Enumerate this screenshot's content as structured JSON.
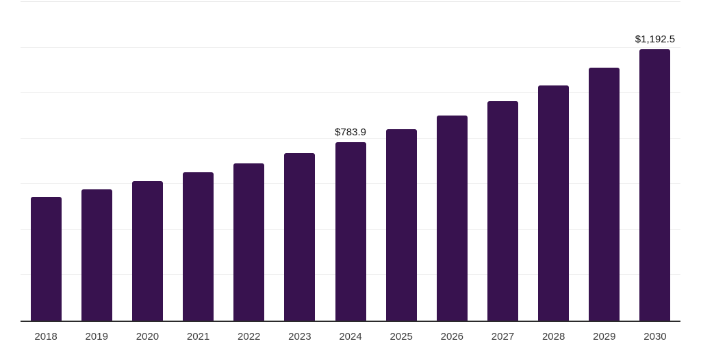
{
  "chart_data": {
    "type": "bar",
    "title": "",
    "xlabel": "",
    "ylabel": "",
    "categories": [
      "2018",
      "2019",
      "2020",
      "2021",
      "2022",
      "2023",
      "2024",
      "2025",
      "2026",
      "2027",
      "2028",
      "2029",
      "2030"
    ],
    "values": [
      543.8,
      576.9,
      612.9,
      652.8,
      690.9,
      734.7,
      783.9,
      840.6,
      900.0,
      965.8,
      1035.0,
      1112.0,
      1192.5
    ],
    "point_labels": {
      "2024": "$783.9",
      "2030": "$1,192.5"
    },
    "ylim": [
      0,
      1400
    ],
    "gridline_step": 200,
    "grid": true,
    "legend": "none",
    "y_tick_labels_visible": false,
    "bar_color": "#38124F",
    "axis_line_color": "#2b2b2b",
    "gridline_color": "#f0f0f0",
    "top_gridline_color": "#e5e5e5",
    "tick_label_color": "#3c3c3c",
    "value_label_color": "#141414",
    "background_color": "#ffffff"
  }
}
